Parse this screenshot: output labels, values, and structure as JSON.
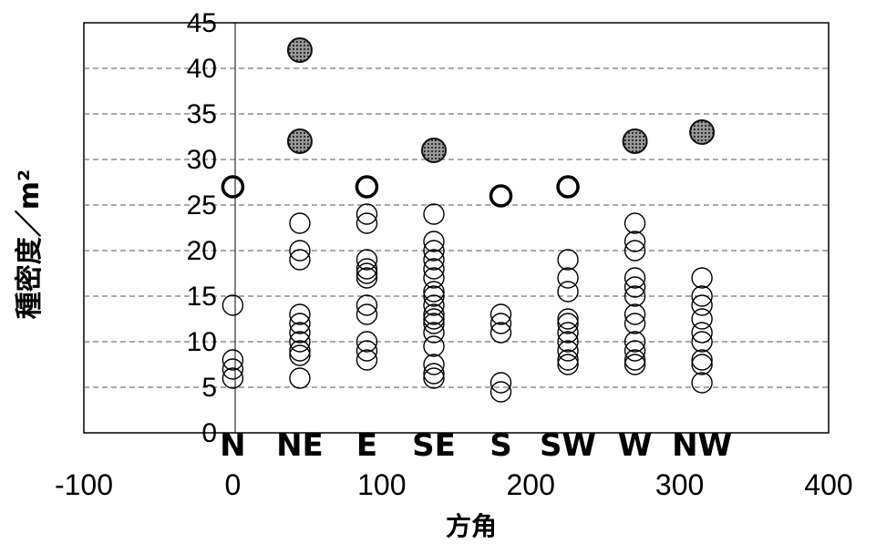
{
  "chart_data": {
    "type": "scatter",
    "title": "",
    "xlabel": "方角",
    "ylabel": "種密度／m²",
    "xlim": [
      -100,
      400
    ],
    "ylim": [
      0,
      45
    ],
    "x_ticks": [
      "-100",
      "0",
      "100",
      "200",
      "300",
      "400"
    ],
    "y_ticks": [
      "0",
      "5",
      "10",
      "15",
      "20",
      "25",
      "30",
      "35",
      "40",
      "45"
    ],
    "direction_labels": [
      {
        "label": "N",
        "x": 0
      },
      {
        "label": "NE",
        "x": 45
      },
      {
        "label": "E",
        "x": 90
      },
      {
        "label": "SE",
        "x": 135
      },
      {
        "label": "S",
        "x": 180
      },
      {
        "label": "SW",
        "x": 225
      },
      {
        "label": "W",
        "x": 270
      },
      {
        "label": "NW",
        "x": 315
      }
    ],
    "grid": "horizontal dashed",
    "series": [
      {
        "style": "open circles",
        "color": "#000000",
        "points": [
          {
            "x": 0,
            "y": 14
          },
          {
            "x": 0,
            "y": 8
          },
          {
            "x": 0,
            "y": 7
          },
          {
            "x": 0,
            "y": 6
          },
          {
            "x": 45,
            "y": 23
          },
          {
            "x": 45,
            "y": 20
          },
          {
            "x": 45,
            "y": 19
          },
          {
            "x": 45,
            "y": 13
          },
          {
            "x": 45,
            "y": 12
          },
          {
            "x": 45,
            "y": 11
          },
          {
            "x": 45,
            "y": 10
          },
          {
            "x": 45,
            "y": 9
          },
          {
            "x": 45,
            "y": 8.5
          },
          {
            "x": 45,
            "y": 6
          },
          {
            "x": 90,
            "y": 24
          },
          {
            "x": 90,
            "y": 23
          },
          {
            "x": 90,
            "y": 19
          },
          {
            "x": 90,
            "y": 18
          },
          {
            "x": 90,
            "y": 17.5
          },
          {
            "x": 90,
            "y": 17
          },
          {
            "x": 90,
            "y": 14
          },
          {
            "x": 90,
            "y": 13
          },
          {
            "x": 90,
            "y": 10
          },
          {
            "x": 90,
            "y": 9
          },
          {
            "x": 90,
            "y": 8
          },
          {
            "x": 135,
            "y": 24
          },
          {
            "x": 135,
            "y": 21
          },
          {
            "x": 135,
            "y": 20
          },
          {
            "x": 135,
            "y": 19
          },
          {
            "x": 135,
            "y": 18
          },
          {
            "x": 135,
            "y": 17
          },
          {
            "x": 135,
            "y": 15.5
          },
          {
            "x": 135,
            "y": 15
          },
          {
            "x": 135,
            "y": 14
          },
          {
            "x": 135,
            "y": 13
          },
          {
            "x": 135,
            "y": 12.5
          },
          {
            "x": 135,
            "y": 12
          },
          {
            "x": 135,
            "y": 11
          },
          {
            "x": 135,
            "y": 9.5
          },
          {
            "x": 135,
            "y": 7.5
          },
          {
            "x": 135,
            "y": 6.5
          },
          {
            "x": 135,
            "y": 6
          },
          {
            "x": 180,
            "y": 13
          },
          {
            "x": 180,
            "y": 12
          },
          {
            "x": 180,
            "y": 11
          },
          {
            "x": 180,
            "y": 5.5
          },
          {
            "x": 180,
            "y": 4.5
          },
          {
            "x": 225,
            "y": 19
          },
          {
            "x": 225,
            "y": 17
          },
          {
            "x": 225,
            "y": 15.5
          },
          {
            "x": 225,
            "y": 12.5
          },
          {
            "x": 225,
            "y": 12
          },
          {
            "x": 225,
            "y": 11
          },
          {
            "x": 225,
            "y": 10
          },
          {
            "x": 225,
            "y": 9
          },
          {
            "x": 225,
            "y": 8
          },
          {
            "x": 225,
            "y": 7.5
          },
          {
            "x": 270,
            "y": 23
          },
          {
            "x": 270,
            "y": 21
          },
          {
            "x": 270,
            "y": 20
          },
          {
            "x": 270,
            "y": 17
          },
          {
            "x": 270,
            "y": 16
          },
          {
            "x": 270,
            "y": 15
          },
          {
            "x": 270,
            "y": 13
          },
          {
            "x": 270,
            "y": 12
          },
          {
            "x": 270,
            "y": 10
          },
          {
            "x": 270,
            "y": 9
          },
          {
            "x": 270,
            "y": 8
          },
          {
            "x": 270,
            "y": 7.5
          },
          {
            "x": 315,
            "y": 17
          },
          {
            "x": 315,
            "y": 15
          },
          {
            "x": 315,
            "y": 14
          },
          {
            "x": 315,
            "y": 12.5
          },
          {
            "x": 315,
            "y": 11
          },
          {
            "x": 315,
            "y": 10
          },
          {
            "x": 315,
            "y": 8
          },
          {
            "x": 315,
            "y": 7.5
          },
          {
            "x": 315,
            "y": 5.5
          }
        ]
      },
      {
        "style": "bold open circles",
        "color": "#000000",
        "points": [
          {
            "x": 0,
            "y": 27
          },
          {
            "x": 90,
            "y": 27
          },
          {
            "x": 180,
            "y": 26
          },
          {
            "x": 225,
            "y": 27
          }
        ]
      },
      {
        "style": "filled dotted circles",
        "color": "#555555",
        "points": [
          {
            "x": 45,
            "y": 42
          },
          {
            "x": 45,
            "y": 32
          },
          {
            "x": 135,
            "y": 31
          },
          {
            "x": 270,
            "y": 32
          },
          {
            "x": 315,
            "y": 33
          }
        ]
      }
    ]
  }
}
